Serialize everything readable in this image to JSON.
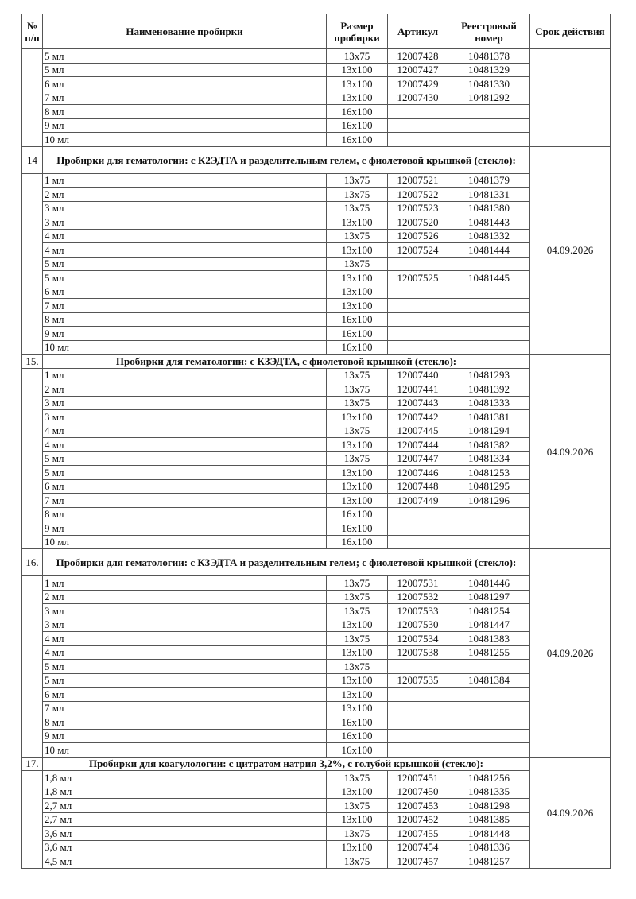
{
  "header": {
    "num": "№ п/п",
    "name": "Наименование пробирки",
    "size": "Размер пробирки",
    "article": "Артикул",
    "registry": "Реестровый номер",
    "expiry": "Срок действия"
  },
  "sections": [
    {
      "num": "",
      "title": "",
      "expiry": "",
      "items": [
        [
          "5 мл",
          "13x75",
          "12007428",
          "10481378"
        ],
        [
          "5 мл",
          "13x100",
          "12007427",
          "10481329"
        ],
        [
          "6 мл",
          "13x100",
          "12007429",
          "10481330"
        ],
        [
          "7 мл",
          "13x100",
          "12007430",
          "10481292"
        ],
        [
          "8 мл",
          "16x100",
          "",
          ""
        ],
        [
          "9 мл",
          "16x100",
          "",
          ""
        ],
        [
          "10 мл",
          "16x100",
          "",
          ""
        ]
      ]
    },
    {
      "num": "14",
      "title": "Пробирки для гематологии: с К2ЭДТА и разделительным гелем, с фиолетовой крышкой (стекло):",
      "expiry": "04.09.2026",
      "items": [
        [
          "1 мл",
          "13x75",
          "12007521",
          "10481379"
        ],
        [
          "2 мл",
          "13x75",
          "12007522",
          "10481331"
        ],
        [
          "3 мл",
          "13x75",
          "12007523",
          "10481380"
        ],
        [
          "3 мл",
          "13x100",
          "12007520",
          "10481443"
        ],
        [
          "4 мл",
          "13x75",
          "12007526",
          "10481332"
        ],
        [
          "4 мл",
          "13x100",
          "12007524",
          "10481444"
        ],
        [
          "5 мл",
          "13x75",
          "",
          ""
        ],
        [
          "5 мл",
          "13x100",
          "12007525",
          "10481445"
        ],
        [
          "6 мл",
          "13x100",
          "",
          ""
        ],
        [
          "7 мл",
          "13x100",
          "",
          ""
        ],
        [
          "8 мл",
          "16x100",
          "",
          ""
        ],
        [
          "9 мл",
          "16x100",
          "",
          ""
        ],
        [
          "10 мл",
          "16x100",
          "",
          ""
        ]
      ]
    },
    {
      "num": "15.",
      "title": "Пробирки для гематологии: с К3ЭДТА, с фиолетовой крышкой (стекло):",
      "expiry": "04.09.2026",
      "items": [
        [
          "1 мл",
          "13x75",
          "12007440",
          "10481293"
        ],
        [
          "2 мл",
          "13x75",
          "12007441",
          "10481392"
        ],
        [
          "3 мл",
          "13x75",
          "12007443",
          "10481333"
        ],
        [
          "3 мл",
          "13x100",
          "12007442",
          "10481381"
        ],
        [
          "4 мл",
          "13x75",
          "12007445",
          "10481294"
        ],
        [
          "4 мл",
          "13x100",
          "12007444",
          "10481382"
        ],
        [
          "5 мл",
          "13x75",
          "12007447",
          "10481334"
        ],
        [
          "5 мл",
          "13x100",
          "12007446",
          "10481253"
        ],
        [
          "6 мл",
          "13x100",
          "12007448",
          "10481295"
        ],
        [
          "7 мл",
          "13x100",
          "12007449",
          "10481296"
        ],
        [
          "8 мл",
          "16x100",
          "",
          ""
        ],
        [
          "9 мл",
          "16x100",
          "",
          ""
        ],
        [
          "10 мл",
          "16x100",
          "",
          ""
        ]
      ]
    },
    {
      "num": "16.",
      "title": "Пробирки для гематологии: с К3ЭДТА и разделительным гелем; с фиолетовой крышкой (стекло):",
      "expiry": "04.09.2026",
      "items": [
        [
          "1 мл",
          "13x75",
          "12007531",
          "10481446"
        ],
        [
          "2 мл",
          "13x75",
          "12007532",
          "10481297"
        ],
        [
          "3 мл",
          "13x75",
          "12007533",
          "10481254"
        ],
        [
          "3 мл",
          "13x100",
          "12007530",
          "10481447"
        ],
        [
          "4 мл",
          "13x75",
          "12007534",
          "10481383"
        ],
        [
          "4 мл",
          "13x100",
          "12007538",
          "10481255"
        ],
        [
          "5 мл",
          "13x75",
          "",
          ""
        ],
        [
          "5 мл",
          "13x100",
          "12007535",
          "10481384"
        ],
        [
          "6 мл",
          "13x100",
          "",
          ""
        ],
        [
          "7 мл",
          "13x100",
          "",
          ""
        ],
        [
          "8 мл",
          "16x100",
          "",
          ""
        ],
        [
          "9 мл",
          "16x100",
          "",
          ""
        ],
        [
          "10 мл",
          "16x100",
          "",
          ""
        ]
      ]
    },
    {
      "num": "17.",
      "title": "Пробирки для коагулологии: с цитратом натрия 3,2%, с голубой крышкой (стекло):",
      "expiry": "04.09.2026",
      "items": [
        [
          "1,8 мл",
          "13x75",
          "12007451",
          "10481256"
        ],
        [
          "1,8 мл",
          "13x100",
          "12007450",
          "10481335"
        ],
        [
          "2,7 мл",
          "13x75",
          "12007453",
          "10481298"
        ],
        [
          "2,7 мл",
          "13x100",
          "12007452",
          "10481385"
        ],
        [
          "3,6 мл",
          "13x75",
          "12007455",
          "10481448"
        ],
        [
          "3,6 мл",
          "13x100",
          "12007454",
          "10481336"
        ],
        [
          "4,5 мл",
          "13x75",
          "12007457",
          "10481257"
        ]
      ]
    }
  ]
}
